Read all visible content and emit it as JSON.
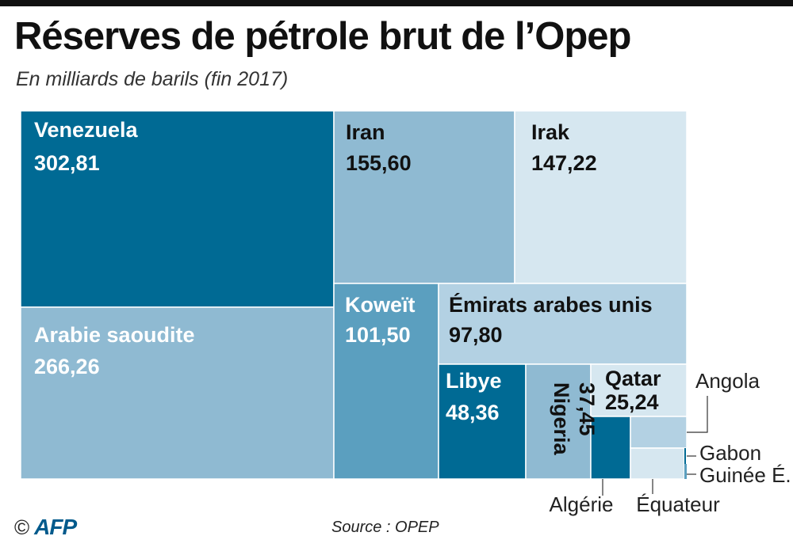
{
  "title": "Réserves de pétrole brut de l’Opep",
  "subtitle": "En milliards de barils (fin 2017)",
  "source": "Source : OPEP",
  "logo": {
    "copyright": "©",
    "brand": "AFP"
  },
  "colors": {
    "dark": "#006a94",
    "medium": "#5b9fbf",
    "light": "#8fbad2",
    "pale": "#b3d1e3",
    "palest": "#d6e7f0",
    "text_light": "#ffffff",
    "text_dark": "#111111"
  },
  "chart_data": {
    "type": "treemap",
    "title": "Réserves de pétrole brut de l’Opep",
    "subtitle": "En milliards de barils (fin 2017)",
    "unit": "milliards de barils",
    "items": [
      {
        "id": "venezuela",
        "name": "Venezuela",
        "value": 302.81,
        "display": "302,81",
        "color": "#006a94"
      },
      {
        "id": "arabie",
        "name": "Arabie saoudite",
        "value": 266.26,
        "display": "266,26",
        "color": "#8fbad2"
      },
      {
        "id": "iran",
        "name": "Iran",
        "value": 155.6,
        "display": "155,60",
        "color": "#8fbad2"
      },
      {
        "id": "irak",
        "name": "Irak",
        "value": 147.22,
        "display": "147,22",
        "color": "#d6e7f0"
      },
      {
        "id": "koweit",
        "name": "Koweït",
        "value": 101.5,
        "display": "101,50",
        "color": "#5b9fbf"
      },
      {
        "id": "emirats",
        "name": "Émirats arabes unis",
        "value": 97.8,
        "display": "97,80",
        "color": "#b3d1e3"
      },
      {
        "id": "libye",
        "name": "Libye",
        "value": 48.36,
        "display": "48,36",
        "color": "#006a94"
      },
      {
        "id": "nigeria",
        "name": "Nigeria",
        "value": 37.45,
        "display": "37,45",
        "color": "#8fbad2"
      },
      {
        "id": "qatar",
        "name": "Qatar",
        "value": 25.24,
        "display": "25,24",
        "color": "#d6e7f0"
      },
      {
        "id": "algerie",
        "name": "Algérie",
        "color": "#006a94"
      },
      {
        "id": "angola",
        "name": "Angola",
        "color": "#b3d1e3"
      },
      {
        "id": "equateur",
        "name": "Équateur",
        "color": "#d6e7f0"
      },
      {
        "id": "gabon",
        "name": "Gabon",
        "color": "#006a94"
      },
      {
        "id": "guinee",
        "name": "Guinée É.",
        "color": "#5b9fbf"
      }
    ]
  }
}
